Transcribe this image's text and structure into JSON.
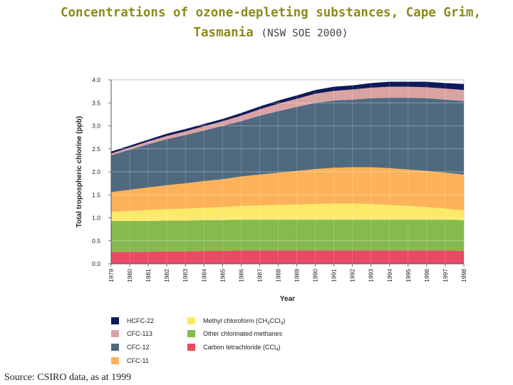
{
  "title": {
    "line1": "Concentrations of ozone-depleting substances, Cape Grim,",
    "line2": "Tasmania",
    "source_note": "(NSW SOE 2000)"
  },
  "source": "Source:  CSIRO data, as at 1999",
  "chart_data": {
    "type": "area",
    "stacked": true,
    "xlabel": "Year",
    "ylabel": "Total tropospheric chlorine (ppb)",
    "ylim": [
      0,
      4
    ],
    "yticks": [
      "0.0",
      "0.5",
      "1.0",
      "1.5",
      "2.0",
      "2.5",
      "3.0",
      "3.5",
      "4.0"
    ],
    "x": [
      "1979",
      "1980",
      "1981",
      "1982",
      "1983",
      "1984",
      "1985",
      "1986",
      "1987",
      "1988",
      "1989",
      "1990",
      "1991",
      "1992",
      "1993",
      "1994",
      "1995",
      "1996",
      "1997",
      "1998"
    ],
    "grid": true,
    "legend_position": "bottom",
    "series": [
      {
        "name": "Carbon tetrachloride (CCl",
        "sub": "4",
        "suffix": ")",
        "color": "#e84a63",
        "values": [
          0.26,
          0.26,
          0.26,
          0.27,
          0.27,
          0.28,
          0.28,
          0.29,
          0.29,
          0.29,
          0.29,
          0.29,
          0.29,
          0.29,
          0.29,
          0.29,
          0.29,
          0.29,
          0.29,
          0.28
        ]
      },
      {
        "name": "Other chlorinated methanes",
        "color": "#86b94e",
        "values": [
          0.67,
          0.67,
          0.67,
          0.67,
          0.67,
          0.67,
          0.67,
          0.67,
          0.67,
          0.67,
          0.67,
          0.67,
          0.67,
          0.67,
          0.67,
          0.67,
          0.67,
          0.67,
          0.67,
          0.67
        ]
      },
      {
        "name": "Methyl chloroform (CH",
        "sub": "3",
        "mid": "CCl",
        "sub2": "3",
        "suffix": ")",
        "color": "#fde968",
        "values": [
          0.2,
          0.22,
          0.24,
          0.25,
          0.26,
          0.27,
          0.28,
          0.3,
          0.31,
          0.32,
          0.33,
          0.34,
          0.35,
          0.35,
          0.34,
          0.32,
          0.3,
          0.27,
          0.24,
          0.21
        ]
      },
      {
        "name": "CFC-11",
        "color": "#fdb259",
        "values": [
          0.43,
          0.46,
          0.49,
          0.52,
          0.55,
          0.58,
          0.61,
          0.64,
          0.67,
          0.7,
          0.73,
          0.76,
          0.78,
          0.79,
          0.8,
          0.8,
          0.79,
          0.79,
          0.78,
          0.78
        ]
      },
      {
        "name": "CFC-12",
        "color": "#4f697f",
        "values": [
          0.8,
          0.87,
          0.94,
          1.0,
          1.05,
          1.1,
          1.16,
          1.2,
          1.28,
          1.34,
          1.39,
          1.44,
          1.46,
          1.47,
          1.5,
          1.53,
          1.56,
          1.58,
          1.59,
          1.6
        ]
      },
      {
        "name": "CFC-113",
        "color": "#d9a3a3",
        "values": [
          0.04,
          0.05,
          0.06,
          0.07,
          0.08,
          0.09,
          0.1,
          0.12,
          0.14,
          0.16,
          0.18,
          0.2,
          0.21,
          0.22,
          0.23,
          0.24,
          0.24,
          0.24,
          0.24,
          0.24
        ]
      },
      {
        "name": "HCFC-22",
        "color": "#0e1a5a",
        "values": [
          0.04,
          0.04,
          0.04,
          0.05,
          0.05,
          0.05,
          0.05,
          0.06,
          0.06,
          0.07,
          0.07,
          0.08,
          0.09,
          0.09,
          0.1,
          0.11,
          0.11,
          0.12,
          0.12,
          0.13
        ]
      }
    ],
    "legend_order": [
      6,
      2,
      5,
      1,
      4,
      0,
      3
    ]
  }
}
